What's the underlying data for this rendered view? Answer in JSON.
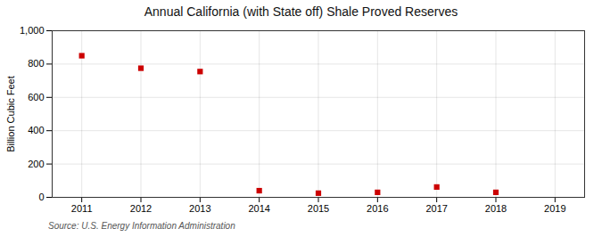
{
  "chart_data": {
    "type": "scatter",
    "title": "Annual California (with State off) Shale Proved Reserves",
    "ylabel": "Billion Cubic Feet",
    "caption": "Source: U.S. Energy Information Administration",
    "x": [
      2011,
      2012,
      2013,
      2014,
      2015,
      2016,
      2017,
      2018
    ],
    "values": [
      850,
      775,
      755,
      40,
      25,
      30,
      62,
      30
    ],
    "color": "#cc0000",
    "marker": "square",
    "xlim": [
      2010.5,
      2019.5
    ],
    "xticks": [
      2011,
      2012,
      2013,
      2014,
      2015,
      2016,
      2017,
      2018,
      2019
    ],
    "ylim": [
      0,
      1000
    ],
    "yticks": [
      0,
      200,
      400,
      600,
      800,
      {
        "value": 1000,
        "label": "1,000"
      }
    ],
    "grid": true
  }
}
